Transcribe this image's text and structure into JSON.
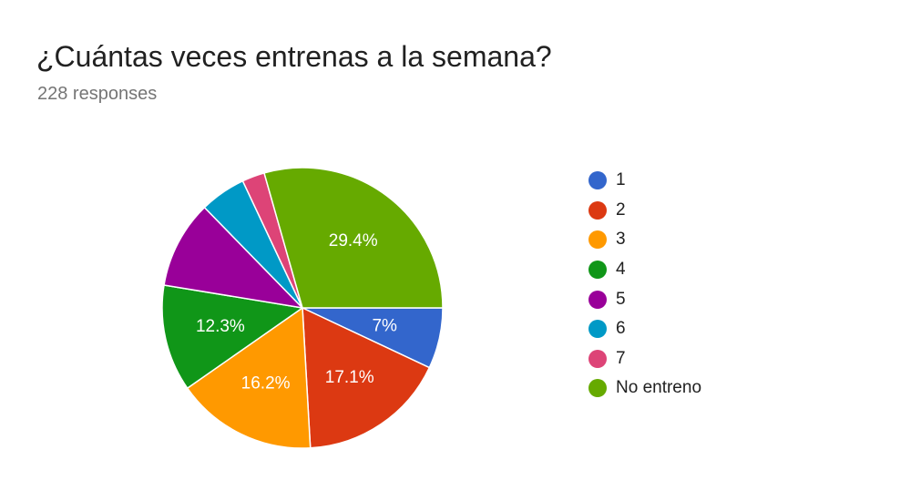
{
  "header": {
    "title": "¿Cuántas veces entrenas a la semana?",
    "subtitle": "228 responses"
  },
  "chart_data": {
    "type": "pie",
    "start": "3 o'clock, clockwise",
    "legend_position": "right",
    "slices": [
      {
        "label": "1",
        "value": 7.0,
        "display": "7%",
        "color": "#3366cc"
      },
      {
        "label": "2",
        "value": 17.1,
        "display": "17.1%",
        "color": "#dc3912"
      },
      {
        "label": "3",
        "value": 16.2,
        "display": "16.2%",
        "color": "#ff9900"
      },
      {
        "label": "4",
        "value": 12.3,
        "display": "12.3%",
        "color": "#109618"
      },
      {
        "label": "5",
        "value": 10.1,
        "display": "",
        "color": "#990099"
      },
      {
        "label": "6",
        "value": 5.3,
        "display": "",
        "color": "#0099c6"
      },
      {
        "label": "7",
        "value": 2.6,
        "display": "",
        "color": "#dd4477"
      },
      {
        "label": "No entreno",
        "value": 29.4,
        "display": "29.4%",
        "color": "#66aa00"
      }
    ]
  }
}
